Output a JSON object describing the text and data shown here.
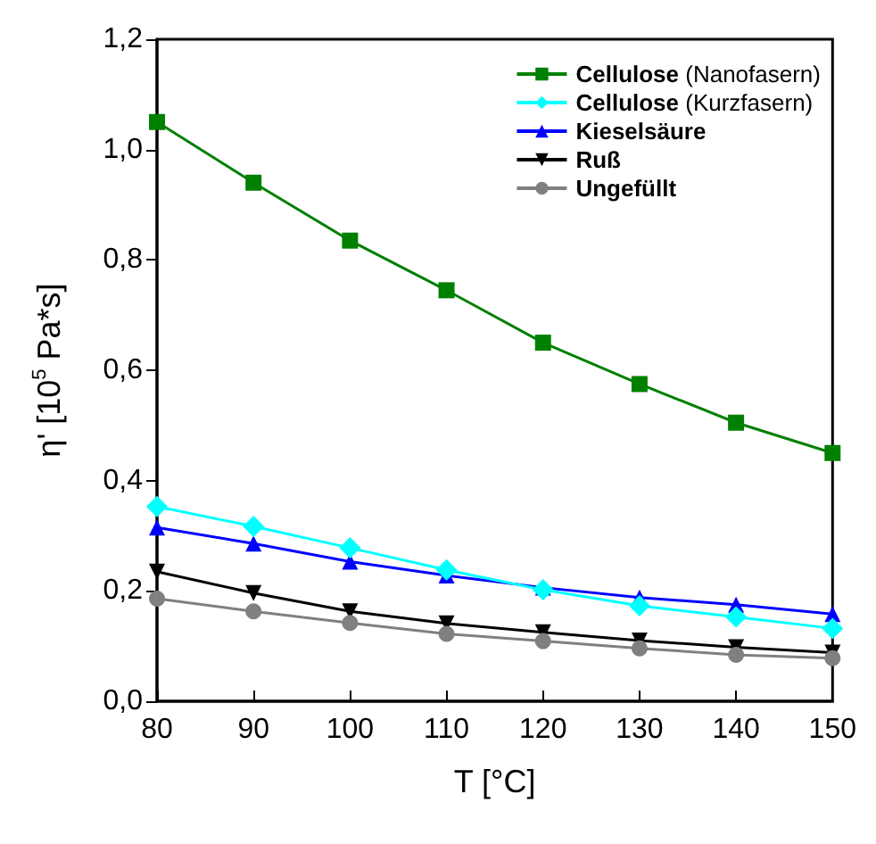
{
  "chart_data": {
    "type": "line",
    "xlabel": "T [°C]",
    "ylabel": "η' [10$^{5}$ Pa*s]",
    "x": [
      80,
      90,
      100,
      110,
      120,
      130,
      140,
      150
    ],
    "xlim": [
      80,
      150
    ],
    "xticks": [
      80,
      90,
      100,
      110,
      120,
      130,
      140,
      150
    ],
    "ylim": [
      0,
      1.2
    ],
    "yticks": [
      {
        "value": 0,
        "label": "0,0"
      },
      {
        "value": 0.2,
        "label": "0,2"
      },
      {
        "value": 0.4,
        "label": "0,4"
      },
      {
        "value": 0.6,
        "label": "0,6"
      },
      {
        "value": 0.8,
        "label": "0,8"
      },
      {
        "value": 1.0,
        "label": "1,0"
      },
      {
        "value": 1.2,
        "label": "1,2"
      }
    ],
    "grid": false,
    "legend": "top right",
    "line_style": "solid",
    "series": [
      {
        "name": "Cellulose (Nanofasern)",
        "color": "#008000",
        "marker": "square",
        "values": [
          1.05,
          0.94,
          0.835,
          0.745,
          0.65,
          0.575,
          0.505,
          0.45
        ]
      },
      {
        "name": "Cellulose (Kurzfasern)",
        "color": "#00ffff",
        "marker": "diamond",
        "values": [
          0.353,
          0.317,
          0.278,
          0.238,
          0.202,
          0.173,
          0.153,
          0.132
        ]
      },
      {
        "name": "Kieselsäure",
        "color": "#0000ff",
        "marker": "triangle",
        "values": [
          0.315,
          0.286,
          0.253,
          0.228,
          0.206,
          0.188,
          0.175,
          0.158
        ]
      },
      {
        "name": "Ruß",
        "color": "#000000",
        "marker": "triangle-down",
        "values": [
          0.235,
          0.196,
          0.163,
          0.141,
          0.125,
          0.11,
          0.098,
          0.088
        ]
      },
      {
        "name": "Ungefüllt",
        "color": "#808080",
        "marker": "circle",
        "values": [
          0.186,
          0.163,
          0.142,
          0.122,
          0.109,
          0.096,
          0.084,
          0.078
        ]
      }
    ]
  }
}
